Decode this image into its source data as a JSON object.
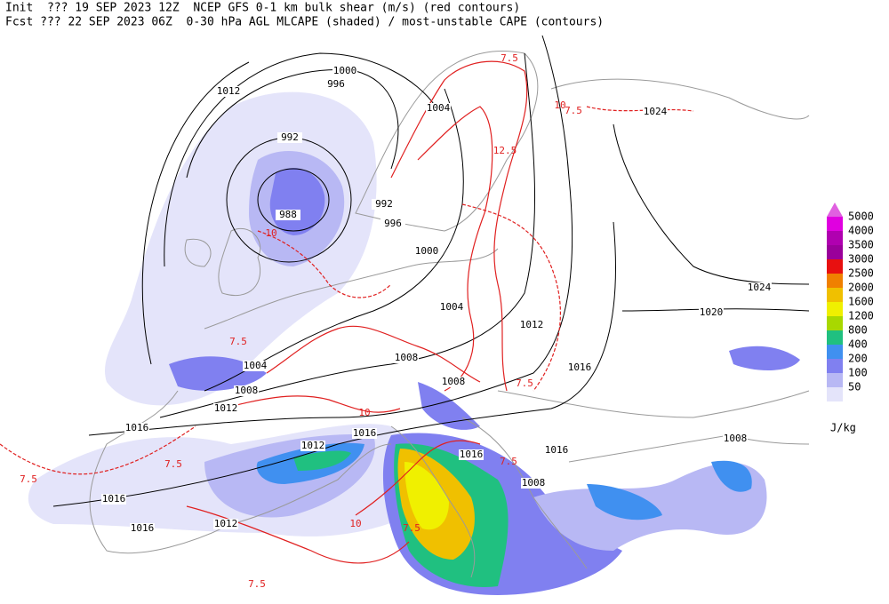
{
  "header": {
    "line1": "Init  ??? 19 SEP 2023 12Z  NCEP GFS 0-1 km bulk shear (m/s) (red contours)",
    "line2": "Fcst ??? 22 SEP 2023 06Z  0-30 hPa AGL MLCAPE (shaded) / most-unstable CAPE (contours)"
  },
  "legend": {
    "levels": [
      5000,
      4000,
      3500,
      3000,
      2500,
      2000,
      1600,
      1200,
      800,
      400,
      200,
      100,
      50
    ],
    "colors": [
      "#e000e0",
      "#b000b0",
      "#9a009a",
      "#e81010",
      "#f08000",
      "#f0c000",
      "#f0f000",
      "#a8d800",
      "#20c080",
      "#4090f0",
      "#8080f0",
      "#b8b8f4",
      "#e4e4fa"
    ],
    "unit": "J/kg"
  },
  "pressure_labels": [
    "1000",
    "996",
    "1012",
    "1004",
    "1024",
    "992",
    "988",
    "992",
    "996",
    "1000",
    "1024",
    "1004",
    "1020",
    "1012",
    "1004",
    "1008",
    "1016",
    "1008",
    "1008",
    "1012",
    "1016",
    "1008",
    "1008",
    "1012",
    "1016",
    "1016",
    "1016",
    "1016",
    "1016",
    "1012"
  ],
  "shear_labels": [
    "7.5",
    "10",
    "12.5",
    "7.5",
    "7.5",
    "7.5",
    "10",
    "7.5",
    "7.5",
    "10",
    "7.5",
    "10",
    "7.5",
    "7.5"
  ]
}
